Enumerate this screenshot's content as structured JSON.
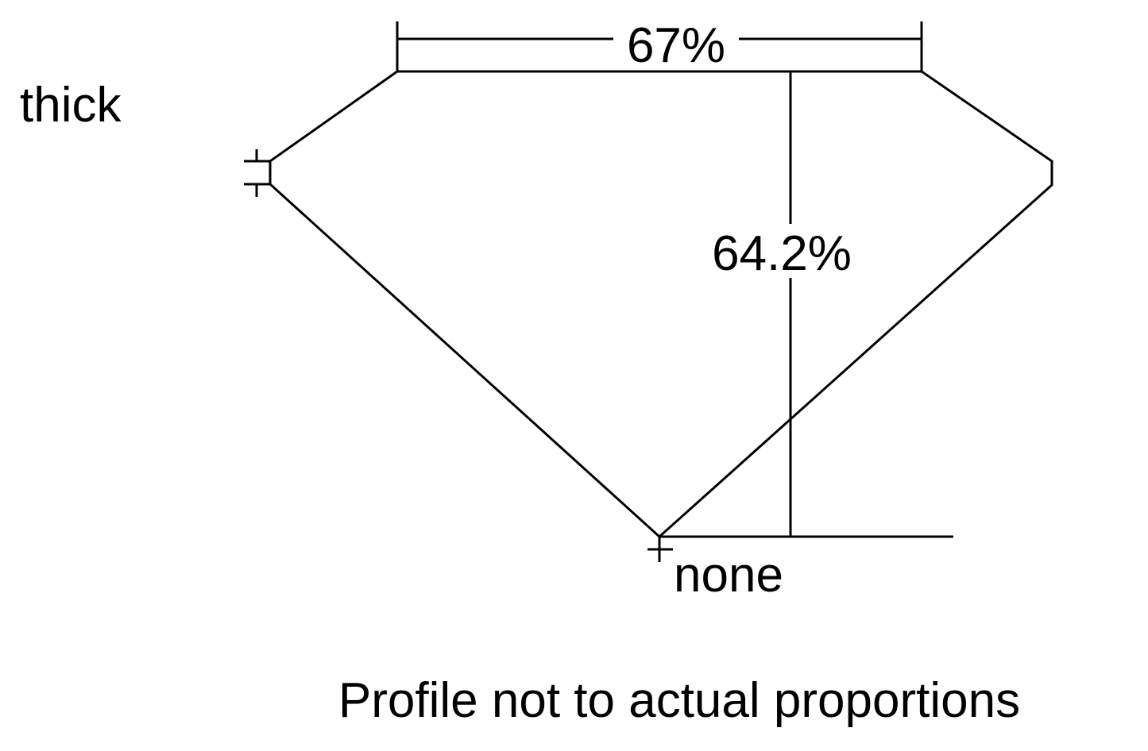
{
  "labels": {
    "girdle_thickness": "thick",
    "culet": "none",
    "table_percent": "67%",
    "depth_percent": "64.2%",
    "note": "Profile not to actual proportions"
  },
  "colors": {
    "line": "#000000",
    "background": "#ffffff"
  }
}
